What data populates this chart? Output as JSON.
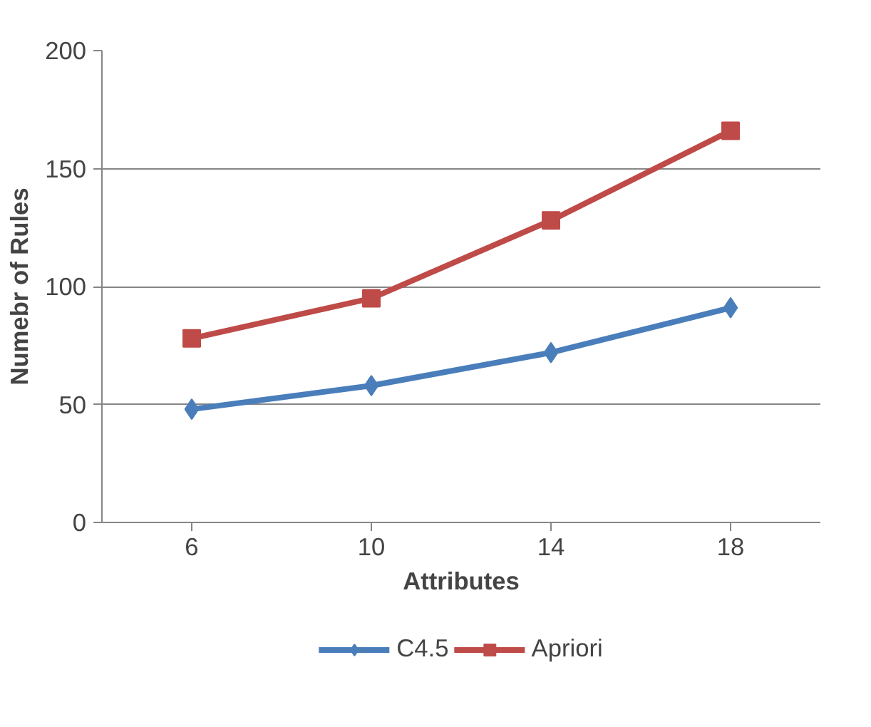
{
  "chart_data": {
    "type": "line",
    "xlabel": "Attributes",
    "ylabel": "Numebr of Rules",
    "categories": [
      "6",
      "10",
      "14",
      "18"
    ],
    "series": [
      {
        "name": "C4.5",
        "color": "#4a7ebb",
        "marker": "diamond",
        "values": [
          48,
          58,
          72,
          91
        ]
      },
      {
        "name": "Apriori",
        "color": "#be4b48",
        "marker": "square",
        "values": [
          78,
          95,
          128,
          166
        ]
      }
    ],
    "ylim": [
      0,
      200
    ],
    "yticks": [
      0,
      50,
      100,
      150,
      200
    ],
    "grid": "y",
    "legend": "bottom"
  }
}
